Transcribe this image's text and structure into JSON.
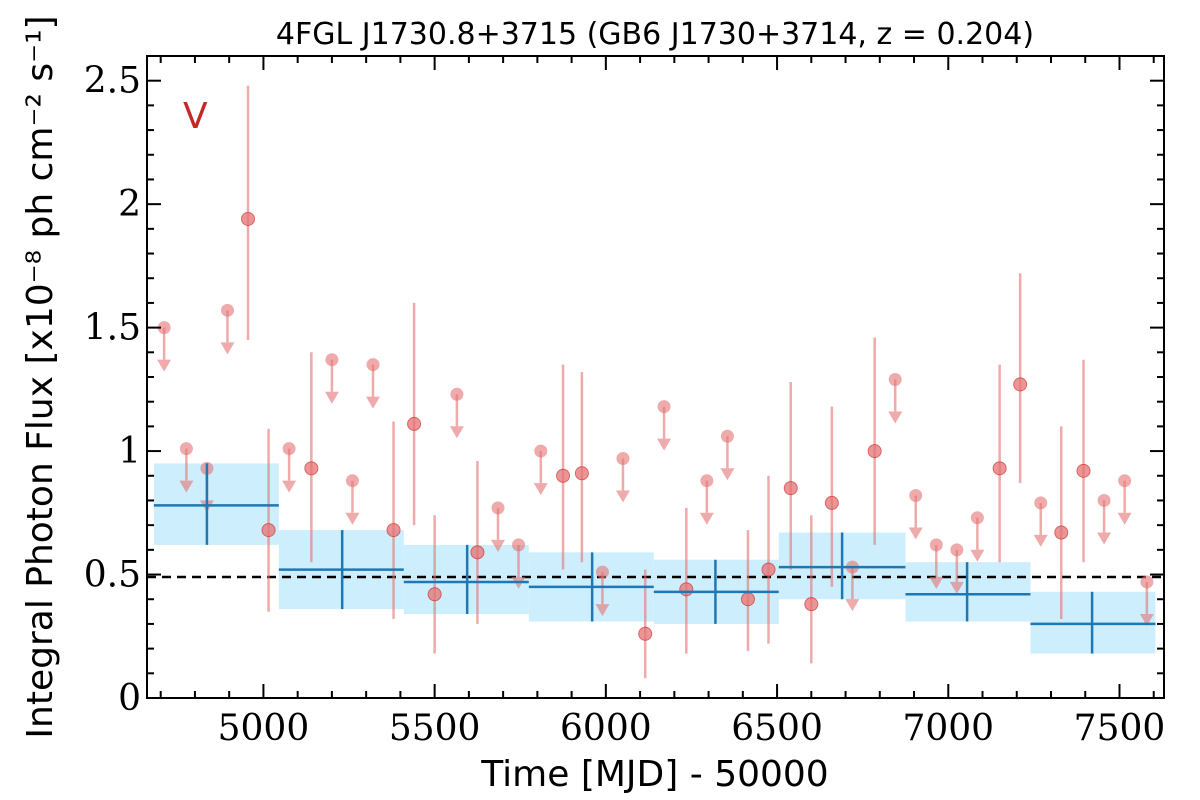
{
  "chart_data": {
    "type": "scatter",
    "title": "4FGL J1730.8+3715 (GB6 J1730+3714, z = 0.204)",
    "xlabel": "Time [MJD] - 50000",
    "ylabel": "Integral Photon Flux [x10⁻⁸ ph cm⁻² s⁻¹]",
    "panel_label": "V",
    "xlim": [
      4660,
      7630
    ],
    "ylim": [
      0,
      2.6
    ],
    "x_ticks": [
      5000,
      5500,
      6000,
      6500,
      7000,
      7500
    ],
    "x_tick_labels": [
      "5000",
      "5500",
      "6000",
      "6500",
      "7000",
      "7500"
    ],
    "y_ticks": [
      0,
      0.5,
      1,
      1.5,
      2,
      2.5
    ],
    "y_tick_labels": [
      "0",
      "0.5",
      "1",
      "1.5",
      "2",
      "2.5"
    ],
    "reference_line": 0.49,
    "grid": false,
    "colors": {
      "points": "#e57373",
      "bins": "#1f77b4",
      "bins_fill": "#cdeefc",
      "reference": "#000000",
      "panel_label": "#c62828"
    },
    "series": [
      {
        "kind": "detections",
        "points": [
          {
            "x": 4955,
            "y": 1.94,
            "lo": 1.45,
            "hi": 2.48
          },
          {
            "x": 5015,
            "y": 0.68,
            "lo": 0.35,
            "hi": 1.09
          },
          {
            "x": 5140,
            "y": 0.93,
            "lo": 0.55,
            "hi": 1.4
          },
          {
            "x": 5380,
            "y": 0.68,
            "lo": 0.32,
            "hi": 1.12
          },
          {
            "x": 5440,
            "y": 1.11,
            "lo": 0.7,
            "hi": 1.6
          },
          {
            "x": 5500,
            "y": 0.42,
            "lo": 0.18,
            "hi": 0.74
          },
          {
            "x": 5625,
            "y": 0.59,
            "lo": 0.3,
            "hi": 0.96
          },
          {
            "x": 5875,
            "y": 0.9,
            "lo": 0.52,
            "hi": 1.35
          },
          {
            "x": 5930,
            "y": 0.91,
            "lo": 0.55,
            "hi": 1.32
          },
          {
            "x": 6115,
            "y": 0.26,
            "lo": 0.08,
            "hi": 0.52
          },
          {
            "x": 6235,
            "y": 0.44,
            "lo": 0.18,
            "hi": 0.77
          },
          {
            "x": 6415,
            "y": 0.4,
            "lo": 0.19,
            "hi": 0.68
          },
          {
            "x": 6475,
            "y": 0.52,
            "lo": 0.22,
            "hi": 0.9
          },
          {
            "x": 6540,
            "y": 0.85,
            "lo": 0.52,
            "hi": 1.28
          },
          {
            "x": 6600,
            "y": 0.38,
            "lo": 0.14,
            "hi": 0.74
          },
          {
            "x": 6660,
            "y": 0.79,
            "lo": 0.45,
            "hi": 1.18
          },
          {
            "x": 6785,
            "y": 1.0,
            "lo": 0.62,
            "hi": 1.46
          },
          {
            "x": 7150,
            "y": 0.93,
            "lo": 0.55,
            "hi": 1.35
          },
          {
            "x": 7210,
            "y": 1.27,
            "lo": 0.87,
            "hi": 1.72
          },
          {
            "x": 7330,
            "y": 0.67,
            "lo": 0.32,
            "hi": 1.1
          },
          {
            "x": 7395,
            "y": 0.92,
            "lo": 0.55,
            "hi": 1.37
          }
        ]
      },
      {
        "kind": "upper_limits",
        "points": [
          {
            "x": 4710,
            "y": 1.5
          },
          {
            "x": 4775,
            "y": 1.01
          },
          {
            "x": 4835,
            "y": 0.93
          },
          {
            "x": 4895,
            "y": 1.57
          },
          {
            "x": 5075,
            "y": 1.01
          },
          {
            "x": 5200,
            "y": 1.37
          },
          {
            "x": 5260,
            "y": 0.88
          },
          {
            "x": 5320,
            "y": 1.35
          },
          {
            "x": 5565,
            "y": 1.23
          },
          {
            "x": 5685,
            "y": 0.77
          },
          {
            "x": 5745,
            "y": 0.62
          },
          {
            "x": 5810,
            "y": 1.0
          },
          {
            "x": 5990,
            "y": 0.51
          },
          {
            "x": 6050,
            "y": 0.97
          },
          {
            "x": 6170,
            "y": 1.18
          },
          {
            "x": 6295,
            "y": 0.88
          },
          {
            "x": 6355,
            "y": 1.06
          },
          {
            "x": 6720,
            "y": 0.53
          },
          {
            "x": 6845,
            "y": 1.29
          },
          {
            "x": 6905,
            "y": 0.82
          },
          {
            "x": 6965,
            "y": 0.62
          },
          {
            "x": 7025,
            "y": 0.6
          },
          {
            "x": 7085,
            "y": 0.73
          },
          {
            "x": 7270,
            "y": 0.79
          },
          {
            "x": 7455,
            "y": 0.8
          },
          {
            "x": 7515,
            "y": 0.88
          },
          {
            "x": 7580,
            "y": 0.47
          }
        ]
      },
      {
        "kind": "yearly_bins",
        "bins": [
          {
            "x0": 4680,
            "x1": 5045,
            "xc": 4835,
            "y": 0.78,
            "ylo": 0.62,
            "yhi": 0.95
          },
          {
            "x0": 5045,
            "x1": 5410,
            "xc": 5230,
            "y": 0.52,
            "ylo": 0.36,
            "yhi": 0.68
          },
          {
            "x0": 5410,
            "x1": 5775,
            "xc": 5595,
            "y": 0.47,
            "ylo": 0.34,
            "yhi": 0.62
          },
          {
            "x0": 5775,
            "x1": 6140,
            "xc": 5960,
            "y": 0.45,
            "ylo": 0.31,
            "yhi": 0.59
          },
          {
            "x0": 6140,
            "x1": 6505,
            "xc": 6320,
            "y": 0.43,
            "ylo": 0.3,
            "yhi": 0.56
          },
          {
            "x0": 6505,
            "x1": 6875,
            "xc": 6690,
            "y": 0.53,
            "ylo": 0.4,
            "yhi": 0.67
          },
          {
            "x0": 6875,
            "x1": 7240,
            "xc": 7055,
            "y": 0.42,
            "ylo": 0.31,
            "yhi": 0.55
          },
          {
            "x0": 7240,
            "x1": 7605,
            "xc": 7420,
            "y": 0.3,
            "ylo": 0.18,
            "yhi": 0.43
          }
        ]
      }
    ]
  }
}
